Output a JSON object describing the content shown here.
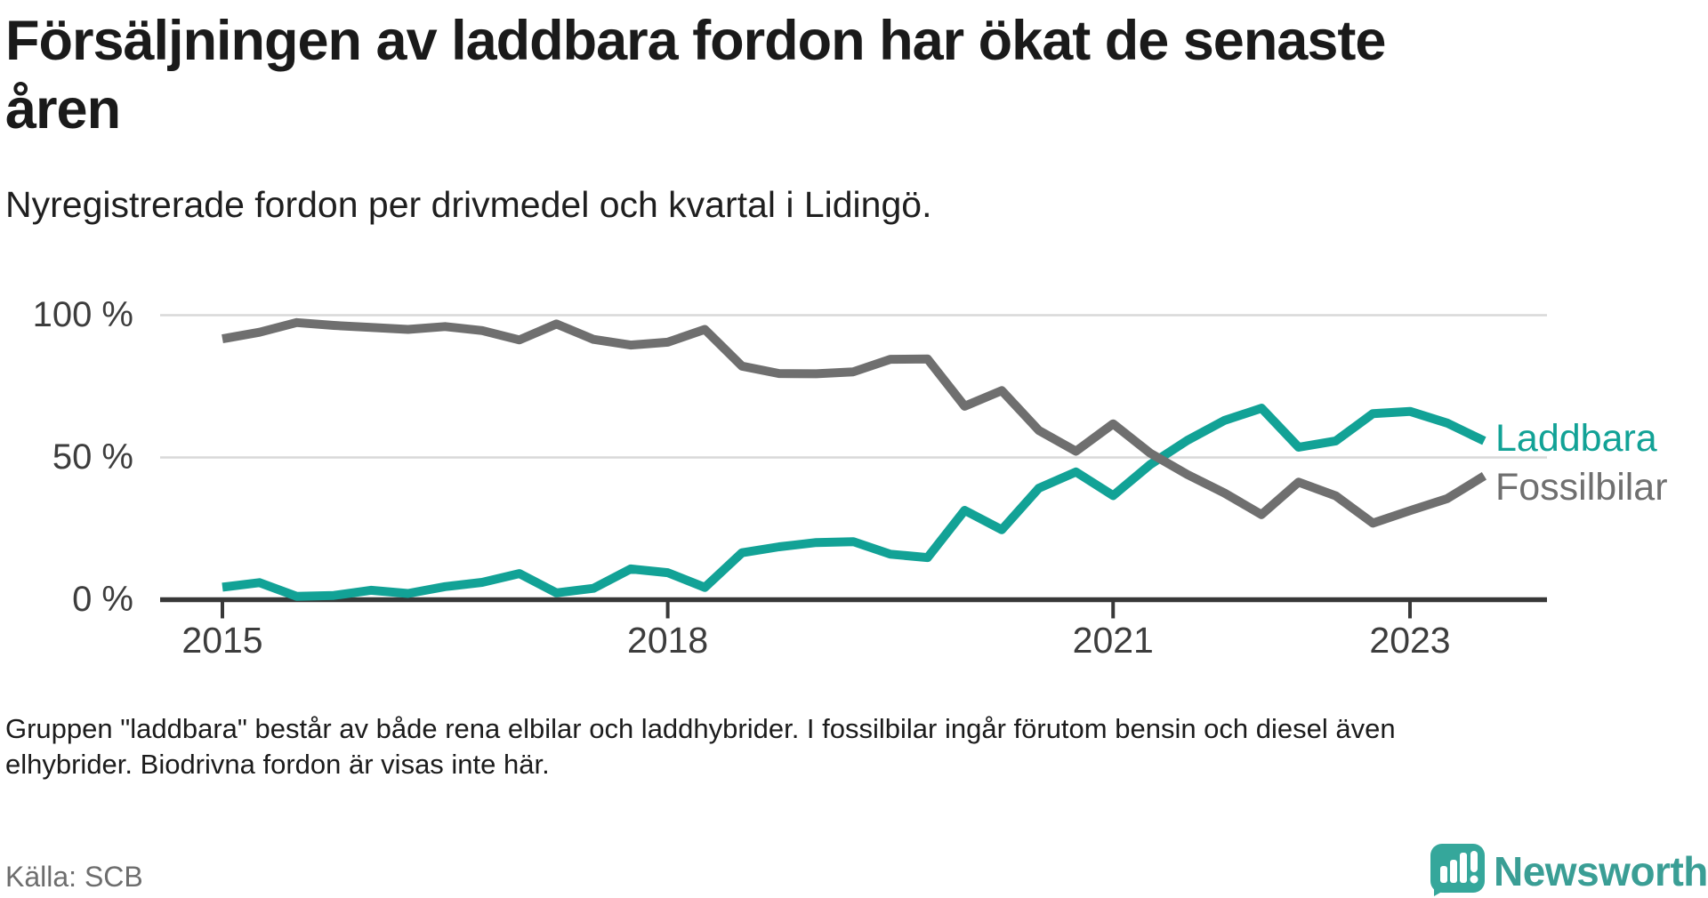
{
  "header": {
    "title_line1": "Försäljningen av laddbara fordon har ökat de senaste",
    "title_line2": "åren",
    "subtitle": "Nyregistrerade fordon per drivmedel och kvartal i Lidingö."
  },
  "chart_data": {
    "type": "line",
    "unit": "%",
    "ylim": [
      0,
      100
    ],
    "grid": "horizontal",
    "legend_position": "right-end-of-lines",
    "y_ticks": [
      {
        "label": "100 %",
        "value": 100
      },
      {
        "label": "50 %",
        "value": 50
      },
      {
        "label": "0 %",
        "value": 0
      }
    ],
    "x_ticks": [
      {
        "label": "2015",
        "quarter_index": 0
      },
      {
        "label": "2018",
        "quarter_index": 12
      },
      {
        "label": "2021",
        "quarter_index": 24
      },
      {
        "label": "2023",
        "quarter_index": 32
      }
    ],
    "x": [
      "2015 Q1",
      "2015 Q2",
      "2015 Q3",
      "2015 Q4",
      "2016 Q1",
      "2016 Q2",
      "2016 Q3",
      "2016 Q4",
      "2017 Q1",
      "2017 Q2",
      "2017 Q3",
      "2017 Q4",
      "2018 Q1",
      "2018 Q2",
      "2018 Q3",
      "2018 Q4",
      "2019 Q1",
      "2019 Q2",
      "2019 Q3",
      "2019 Q4",
      "2020 Q1",
      "2020 Q2",
      "2020 Q3",
      "2020 Q4",
      "2021 Q1",
      "2021 Q2",
      "2021 Q3",
      "2021 Q4",
      "2022 Q1",
      "2022 Q2",
      "2022 Q3",
      "2022 Q4",
      "2023 Q1",
      "2023 Q2",
      "2023 Q3"
    ],
    "series": [
      {
        "name": "Laddbara",
        "color": "#12a296",
        "values": [
          4.4,
          6.0,
          1.2,
          1.5,
          3.3,
          2.2,
          4.6,
          6.1,
          9.2,
          2.4,
          4.0,
          10.8,
          9.5,
          4.3,
          16.5,
          18.6,
          20.1,
          20.4,
          16.0,
          14.8,
          31.4,
          24.6,
          39.2,
          44.9,
          36.6,
          47.5,
          56.0,
          63.0,
          67.3,
          53.6,
          55.8,
          65.4,
          66.2,
          62.1,
          55.8
        ]
      },
      {
        "name": "Fossilbilar",
        "color": "#6f6f6f",
        "values": [
          91.7,
          94.0,
          97.4,
          96.4,
          95.7,
          95.0,
          96.0,
          94.6,
          91.3,
          96.9,
          91.5,
          89.5,
          90.5,
          95.0,
          82.1,
          79.5,
          79.4,
          80.1,
          84.5,
          84.6,
          68.0,
          73.5,
          59.5,
          52.2,
          61.8,
          51.5,
          44.0,
          37.5,
          29.9,
          41.3,
          36.5,
          26.9,
          31.3,
          35.5,
          43.5
        ]
      }
    ]
  },
  "footnote": {
    "line1": "Gruppen \"laddbara\" består av både rena elbilar och laddhybrider. I fossilbilar ingår förutom bensin och diesel även",
    "line2": "elhybrider. Biodrivna fordon är visas inte här."
  },
  "source": "Källa: SCB",
  "branding": {
    "wordmark": "Newsworthy",
    "icon": "newsworthy-speech-bubble-chart-icon"
  },
  "colors": {
    "laddbara": "#12a296",
    "fossilbilar": "#6f6f6f",
    "gridline": "#d8d8d8",
    "axis": "#383838",
    "tick_label": "#3d3d3d",
    "brand_teal": "#3a9e95",
    "icon_teal": "#35a79b",
    "source_gray": "#6d6d6d"
  }
}
